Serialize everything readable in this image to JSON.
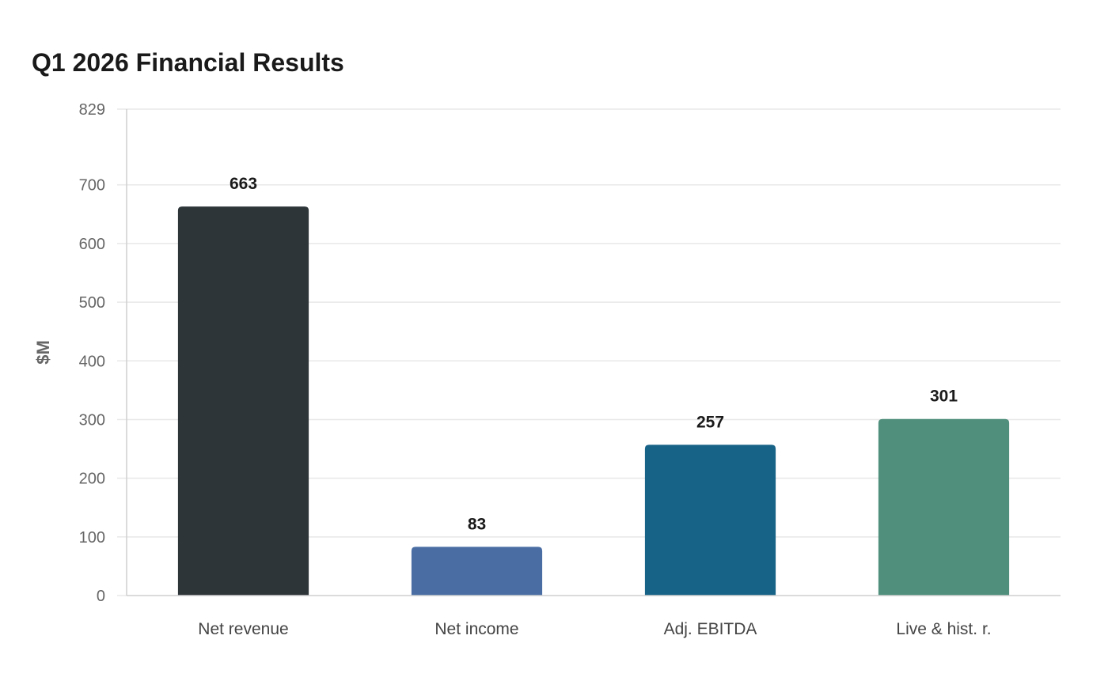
{
  "chart_data": {
    "type": "bar",
    "title": "Q1 2026 Financial Results",
    "xlabel": "",
    "ylabel": "$M",
    "categories": [
      "Net revenue",
      "Net income",
      "Adj. EBITDA",
      "Live & hist. r."
    ],
    "values": [
      663,
      83,
      257,
      301
    ],
    "colors": [
      "#2e3538",
      "#4a6ea4",
      "#176287",
      "#4f8f7c"
    ],
    "ylim": [
      0,
      829
    ],
    "yticks": [
      0,
      100,
      200,
      300,
      400,
      500,
      600,
      700,
      829
    ],
    "grid": true,
    "legend": "none"
  }
}
